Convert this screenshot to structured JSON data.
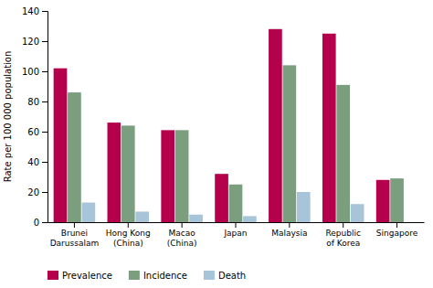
{
  "chart_data": {
    "type": "bar",
    "categories": [
      "Brunei\nDarussalam",
      "Hong Kong\n(China)",
      "Macao\n(China)",
      "Japan",
      "Malaysia",
      "Republic\nof Korea",
      "Singapore"
    ],
    "series": [
      {
        "name": "Prevalence",
        "color": "#b5004b",
        "values": [
          102,
          66,
          61,
          32,
          128,
          125,
          28
        ]
      },
      {
        "name": "Incidence",
        "color": "#7a9e7e",
        "values": [
          86,
          64,
          61,
          25,
          104,
          91,
          29
        ]
      },
      {
        "name": "Death",
        "color": "#a8c4d8",
        "values": [
          13,
          7,
          5,
          4,
          20,
          12,
          0
        ]
      }
    ],
    "y_label": "Rate per 100 000 population",
    "ylim": [
      0,
      140
    ],
    "yticks": [
      0,
      20,
      40,
      60,
      80,
      100,
      120,
      140
    ],
    "grid": false,
    "legend": "bottom"
  }
}
